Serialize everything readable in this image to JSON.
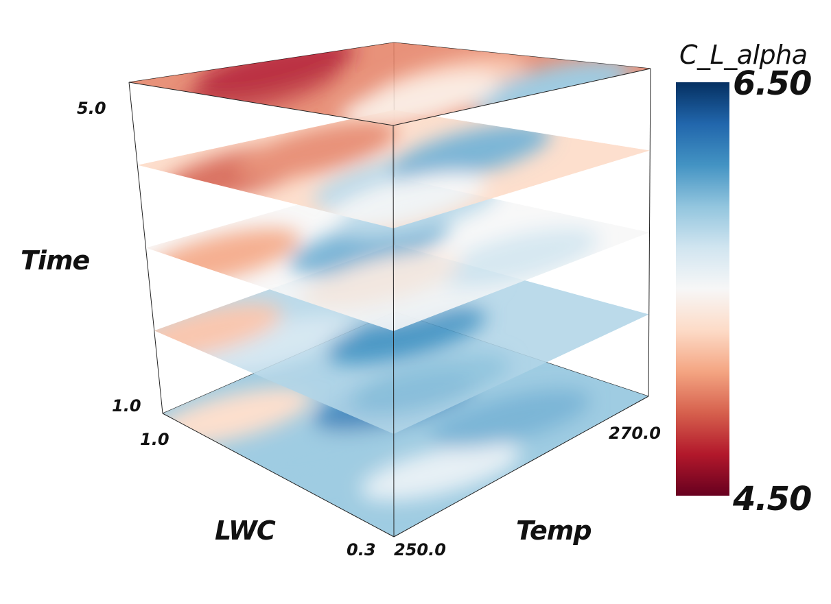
{
  "chart_data": {
    "type": "heatmap",
    "subtype": "stacked 3D slices",
    "axes": {
      "vertical": {
        "label": "Time",
        "range": [
          1.0,
          5.0
        ],
        "ticks": [
          "1.0",
          "5.0"
        ]
      },
      "lwc": {
        "label": "LWC",
        "range": [
          1.0,
          0.3
        ],
        "ticks": [
          "1.0",
          "0.3"
        ]
      },
      "temp": {
        "label": "Temp",
        "range": [
          250.0,
          270.0
        ],
        "ticks": [
          "250.0",
          "270.0"
        ]
      }
    },
    "colorbar": {
      "title": "C_L_alpha",
      "min": 4.5,
      "max": 6.5,
      "min_label": "4.50",
      "max_label": "6.50",
      "colormap": "red-white-blue (diverging)",
      "stops": [
        "#67001f",
        "#b2182b",
        "#d6604d",
        "#f4a582",
        "#fddbc7",
        "#f7f7f7",
        "#d1e5f0",
        "#92c5de",
        "#4393c3",
        "#2166ac",
        "#053061"
      ]
    },
    "slices": [
      {
        "time": 1.0,
        "dominant": "blue",
        "mean_value": 5.9
      },
      {
        "time": 2.0,
        "dominant": "blue",
        "mean_value": 5.8
      },
      {
        "time": 3.0,
        "dominant": "mixed",
        "mean_value": 5.5
      },
      {
        "time": 4.0,
        "dominant": "mixed",
        "mean_value": 5.3
      },
      {
        "time": 5.0,
        "dominant": "red",
        "mean_value": 5.0
      }
    ],
    "grid": false,
    "legend_placement": "right"
  }
}
